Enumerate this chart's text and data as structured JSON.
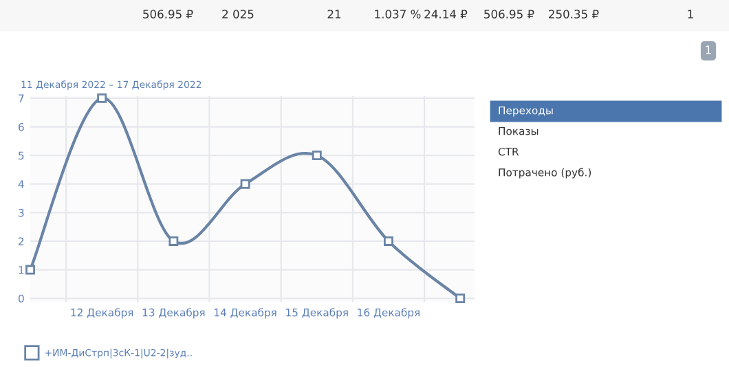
{
  "chart_data": {
    "type": "line",
    "subtitle": "11 Декабря 2022 – 17 Декабря 2022",
    "categories": [
      null,
      "12 Декабря",
      "13 Декабря",
      "14 Декабря",
      "15 Декабря",
      "16 Декабря",
      null
    ],
    "series": [
      {
        "name": "+ИМ-ДиСтрп|3сК-1|U2-2|зуд..",
        "color": "#6a84a6",
        "values": [
          1,
          7,
          2,
          4,
          5,
          2,
          0
        ]
      }
    ],
    "ylim": [
      0,
      7
    ],
    "yticks": [
      0,
      1,
      2,
      3,
      4,
      5,
      6,
      7
    ],
    "grid": true,
    "marker": "square",
    "legend": "bottom left",
    "annotations": [
      "506.95 ₽",
      "2 025",
      "21",
      "1.037 %",
      "24.14 ₽",
      "506.95 ₽",
      "250.35 ₽",
      "1",
      "1",
      "Переходы",
      "Показы",
      "CTR",
      "Потрачено (руб.)"
    ]
  }
}
